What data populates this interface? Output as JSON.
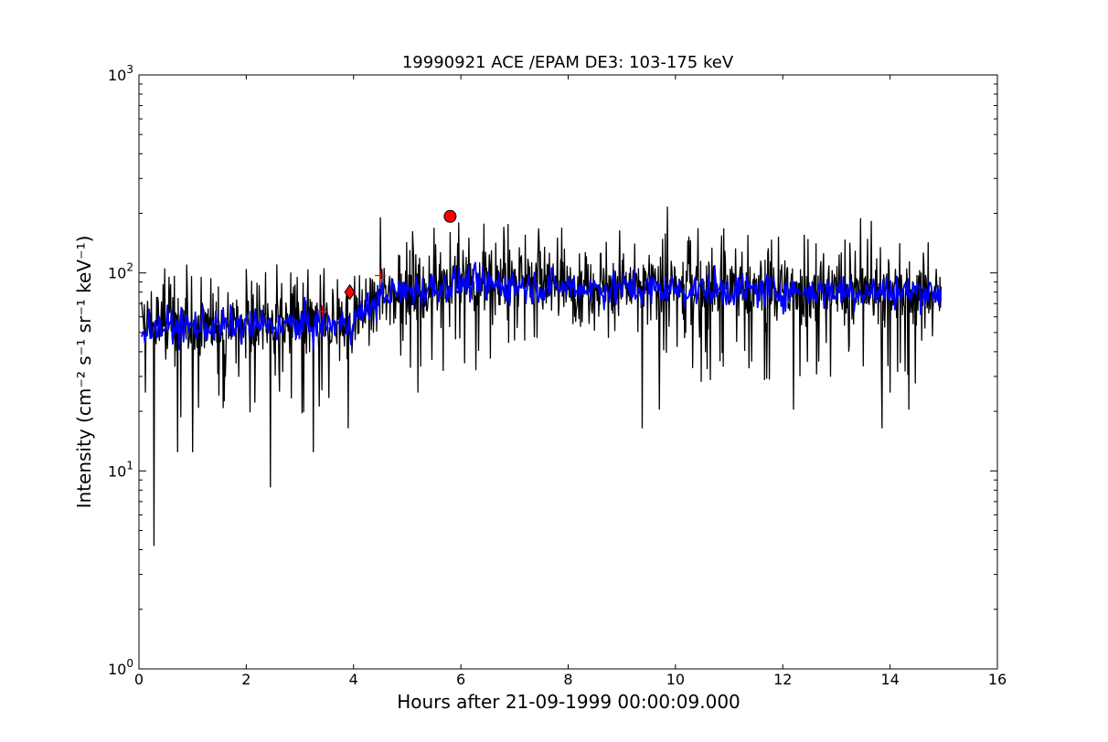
{
  "chart_data": {
    "type": "line",
    "title": "19990921 ACE /EPAM DE3: 103-175 keV",
    "xlabel": "Hours after 21-09-1999 00:00:09.000",
    "ylabel": "Intensity (cm⁻² s⁻¹ sr⁻¹ keV⁻¹)",
    "xlim": [
      0,
      16
    ],
    "ylim": [
      1,
      1000
    ],
    "yscale": "log",
    "grid": false,
    "x_ticks": [
      0,
      2,
      4,
      6,
      8,
      10,
      12,
      14,
      16
    ],
    "x_tick_labels": [
      "0",
      "2",
      "4",
      "6",
      "8",
      "10",
      "12",
      "14",
      "16"
    ],
    "y_ticks": [
      1,
      10,
      100,
      1000
    ],
    "y_tick_base": "10",
    "y_tick_exponents": [
      "0",
      "1",
      "2",
      "3"
    ],
    "series": [
      {
        "color": "#000000",
        "x_range": [
          0.05,
          14.95
        ],
        "sample_step_hours": 0.01,
        "profile": [
          {
            "x": 0.0,
            "y": 55
          },
          {
            "x": 3.9,
            "y": 55
          },
          {
            "x": 4.6,
            "y": 80
          },
          {
            "x": 6.0,
            "y": 90
          },
          {
            "x": 9.0,
            "y": 85
          },
          {
            "x": 15.0,
            "y": 80
          }
        ],
        "dips": [
          {
            "x": 0.28,
            "y": 4.2
          },
          {
            "x": 2.45,
            "y": 8.3
          },
          {
            "x": 3.25,
            "y": 12.5
          },
          {
            "x": 0.72,
            "y": 12.5
          },
          {
            "x": 1.0,
            "y": 12.5
          },
          {
            "x": 3.9,
            "y": 16.5
          },
          {
            "x": 9.38,
            "y": 16.5
          },
          {
            "x": 13.85,
            "y": 16.5
          },
          {
            "x": 12.2,
            "y": 20.5
          },
          {
            "x": 14.35,
            "y": 20.5
          },
          {
            "x": 9.7,
            "y": 20.5
          },
          {
            "x": 5.2,
            "y": 25
          },
          {
            "x": 0.12,
            "y": 25
          },
          {
            "x": 14.0,
            "y": 25
          }
        ],
        "peaks": [
          {
            "x": 9.85,
            "y": 215
          },
          {
            "x": 4.5,
            "y": 190
          },
          {
            "x": 13.45,
            "y": 188
          },
          {
            "x": 13.65,
            "y": 182
          },
          {
            "x": 6.8,
            "y": 170
          },
          {
            "x": 5.8,
            "y": 160
          },
          {
            "x": 6.15,
            "y": 150
          },
          {
            "x": 7.2,
            "y": 155
          },
          {
            "x": 10.25,
            "y": 152
          },
          {
            "x": 12.4,
            "y": 155
          },
          {
            "x": 7.8,
            "y": 150
          },
          {
            "x": 3.45,
            "y": 105
          },
          {
            "x": 2.95,
            "y": 95
          }
        ]
      },
      {
        "color": "#0000ff",
        "x_range": [
          0.05,
          14.95
        ],
        "sample_step_hours": 0.02,
        "profile": [
          {
            "x": 0.0,
            "y": 53
          },
          {
            "x": 3.9,
            "y": 55
          },
          {
            "x": 4.6,
            "y": 78
          },
          {
            "x": 6.0,
            "y": 88
          },
          {
            "x": 9.0,
            "y": 83
          },
          {
            "x": 15.0,
            "y": 80
          }
        ]
      }
    ],
    "markers": [
      {
        "shape": "plus",
        "x": 3.42,
        "y": 64,
        "color": "#ff0000"
      },
      {
        "shape": "diamond",
        "x": 3.93,
        "y": 80,
        "color": "#ff0000"
      },
      {
        "shape": "plus",
        "x": 4.5,
        "y": 97,
        "color": "#ff0000"
      },
      {
        "shape": "circle",
        "x": 5.8,
        "y": 193,
        "color": "#ff0000"
      }
    ]
  }
}
